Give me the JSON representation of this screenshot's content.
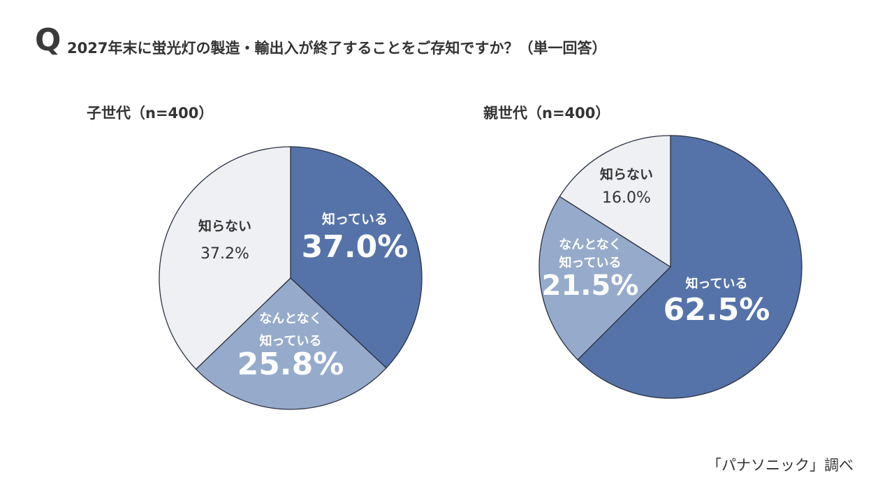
{
  "question": {
    "mark": "Q",
    "text": "2027年末に蛍光灯の製造・輸出入が終了することをご存知ですか？（単一回答）"
  },
  "source": "「パナソニック」調べ",
  "colors": {
    "know": "#5573a8",
    "vaguely": "#96abcb",
    "dont_know": "#eff0f4",
    "stroke": "#2a3140",
    "text_dark": "#333333",
    "text_light": "#ffffff"
  },
  "chart_data": [
    {
      "type": "pie",
      "title": "子世代（n=400）",
      "slices": [
        {
          "label": "知っている",
          "value": 37.0,
          "display": "37.0%"
        },
        {
          "label": "なんとなく知っている",
          "label_lines": [
            "なんとなく",
            "知っている"
          ],
          "value": 25.8,
          "display": "25.8%"
        },
        {
          "label": "知らない",
          "value": 37.2,
          "display": "37.2%"
        }
      ]
    },
    {
      "type": "pie",
      "title": "親世代（n=400）",
      "slices": [
        {
          "label": "知っている",
          "value": 62.5,
          "display": "62.5%"
        },
        {
          "label": "なんとなく知っている",
          "label_lines": [
            "なんとなく",
            "知っている"
          ],
          "value": 21.5,
          "display": "21.5%"
        },
        {
          "label": "知らない",
          "value": 16.0,
          "display": "16.0%"
        }
      ]
    }
  ]
}
